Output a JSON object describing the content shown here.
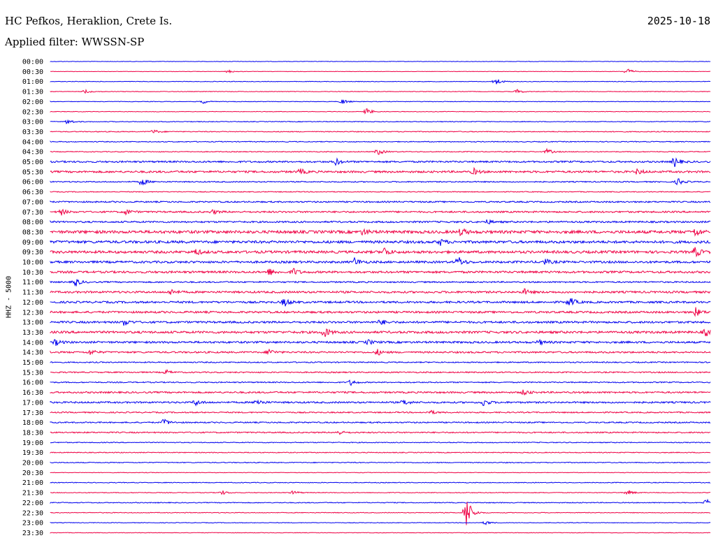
{
  "header": {
    "station": "HC Pefkos, Heraklion, Crete Is.",
    "date": "2025-10-18",
    "filter": "Applied filter: WWSSN-SP"
  },
  "chart_data": {
    "type": "line",
    "ylabel": "HHZ - 5000",
    "colors": {
      "even": "#0000ee",
      "odd": "#ee0044"
    },
    "row_labels": [
      "00:00",
      "00:30",
      "01:00",
      "01:30",
      "02:00",
      "02:30",
      "03:00",
      "03:30",
      "04:00",
      "04:30",
      "05:00",
      "05:30",
      "06:00",
      "06:30",
      "07:00",
      "07:30",
      "08:00",
      "08:30",
      "09:00",
      "09:30",
      "10:00",
      "10:30",
      "11:00",
      "11:30",
      "12:00",
      "12:30",
      "13:00",
      "13:30",
      "14:00",
      "14:30",
      "15:00",
      "15:30",
      "16:00",
      "16:30",
      "17:00",
      "17:30",
      "18:00",
      "18:30",
      "19:00",
      "19:30",
      "20:00",
      "20:30",
      "21:00",
      "21:30",
      "22:00",
      "22:30",
      "23:00",
      "23:30"
    ],
    "noise_level": [
      0.3,
      0.3,
      0.4,
      0.4,
      0.4,
      0.4,
      0.5,
      0.6,
      0.6,
      0.6,
      1.2,
      1.4,
      0.8,
      0.6,
      1.0,
      1.2,
      1.2,
      2.0,
      1.8,
      1.8,
      1.5,
      1.5,
      1.0,
      1.4,
      1.4,
      1.4,
      1.4,
      1.6,
      1.4,
      1.2,
      0.8,
      0.9,
      0.8,
      1.2,
      1.2,
      0.9,
      0.9,
      0.9,
      0.6,
      0.6,
      0.6,
      0.4,
      0.5,
      0.5,
      0.6,
      0.5,
      0.4,
      0.4
    ]
  }
}
